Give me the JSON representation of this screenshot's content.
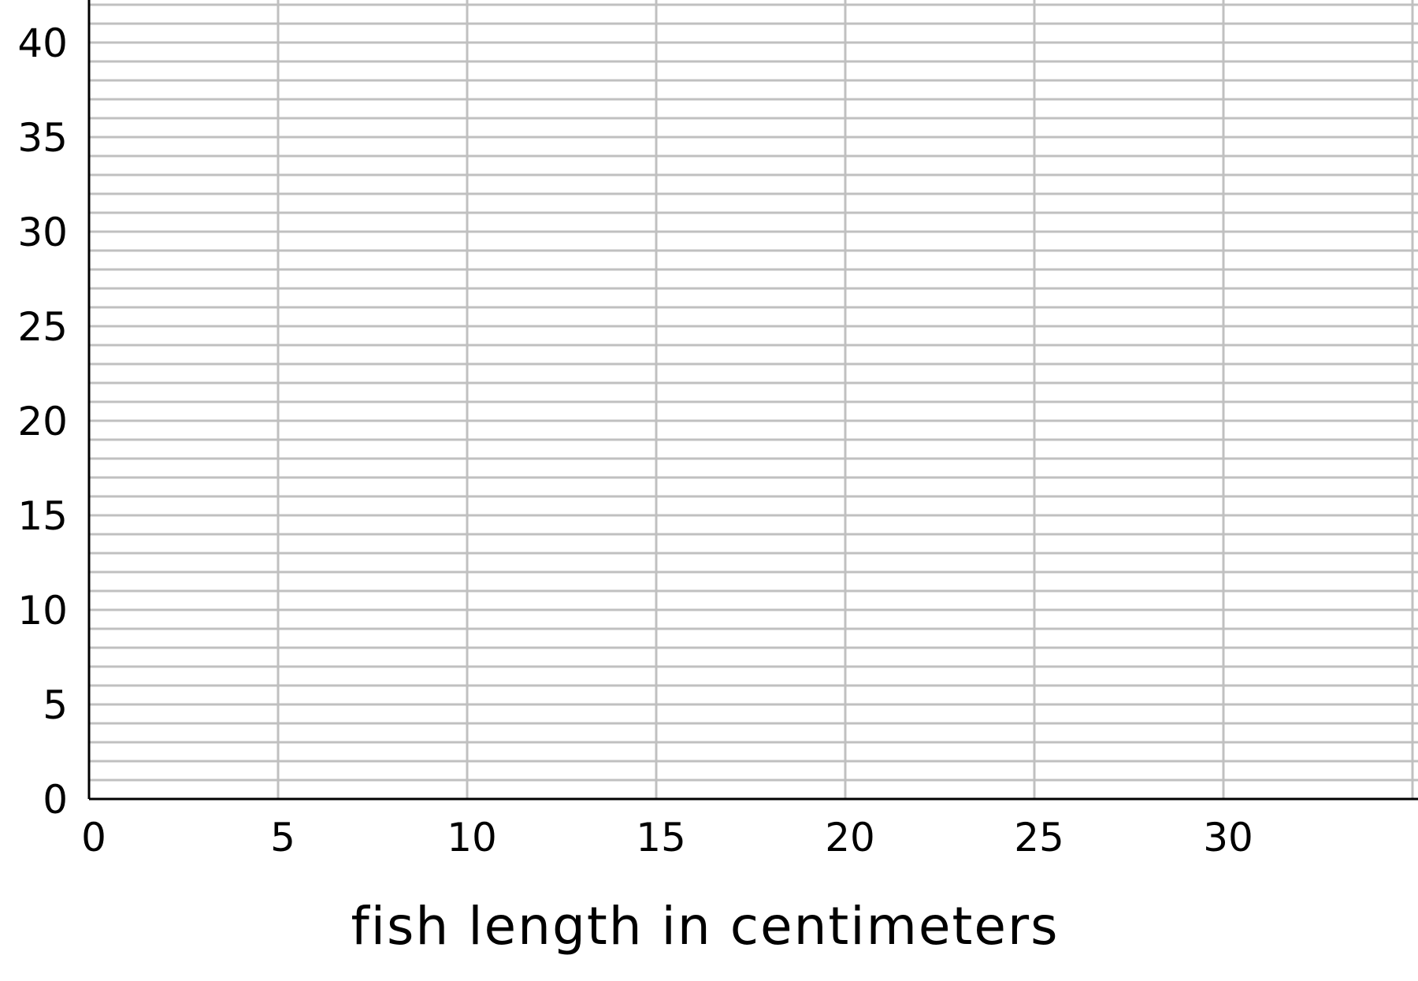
{
  "chart_data": {
    "type": "scatter",
    "title": "",
    "xlabel": "fish length in centimeters",
    "ylabel": "",
    "xlim": [
      0,
      35
    ],
    "ylim": [
      0,
      42.2
    ],
    "x_ticks": [
      0,
      5,
      10,
      15,
      20,
      25,
      30
    ],
    "y_ticks": [
      0,
      5,
      10,
      15,
      20,
      25,
      30,
      35,
      40
    ],
    "x_tick_labels": [
      "0",
      "5",
      "10",
      "15",
      "20",
      "25",
      "30"
    ],
    "y_tick_labels": [
      "0",
      "5",
      "10",
      "15",
      "20",
      "25",
      "30",
      "35",
      "40"
    ],
    "x_grid_step": 5,
    "y_grid_step": 1,
    "grid": true,
    "grid_color": "#c0c0c0",
    "axis_color": "#000000",
    "series": []
  }
}
